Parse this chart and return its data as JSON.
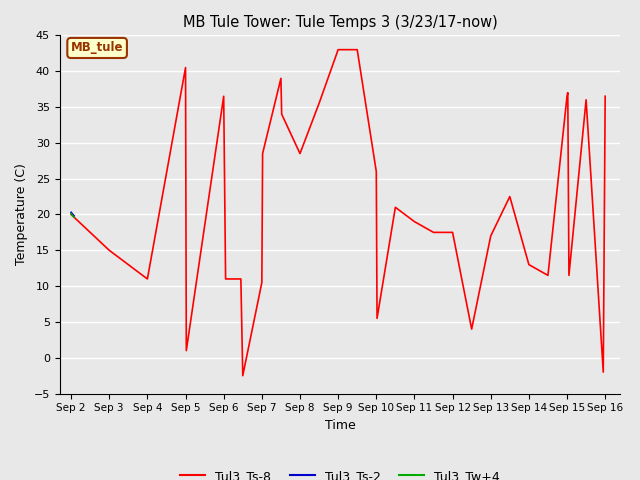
{
  "title": "MB Tule Tower: Tule Temps 3 (3/23/17-now)",
  "xlabel": "Time",
  "ylabel": "Temperature (C)",
  "ylim": [
    -5,
    45
  ],
  "fig_facecolor": "#e8e8e8",
  "plot_bg_color": "#e8e8e8",
  "grid_color": "white",
  "annotation_box_text": "MB_tule",
  "annotation_box_facecolor": "#ffffcc",
  "annotation_box_edgecolor": "#993300",
  "xtick_labels": [
    "Sep 2",
    "Sep 3",
    "Sep 4",
    "Sep 5",
    "Sep 6",
    "Sep 7",
    "Sep 8",
    "Sep 9",
    "Sep 10",
    "Sep 11",
    "Sep 12",
    "Sep 13",
    "Sep 14",
    "Sep 15",
    "Sep 16"
  ],
  "xtick_positions": [
    2,
    3,
    4,
    5,
    6,
    7,
    8,
    9,
    10,
    11,
    12,
    13,
    14,
    15,
    16
  ],
  "series": [
    {
      "name": "Tul3_Ts-8",
      "color": "#ff0000",
      "linewidth": 1.2,
      "x": [
        2.0,
        3.0,
        4.0,
        5.0,
        5.02,
        6.0,
        6.05,
        6.45,
        6.5,
        7.0,
        7.02,
        7.5,
        7.52,
        8.0,
        8.5,
        9.0,
        9.5,
        10.0,
        10.02,
        10.5,
        11.0,
        11.5,
        12.0,
        12.5,
        13.0,
        13.5,
        14.0,
        14.5,
        15.0,
        15.02,
        15.05,
        15.5,
        15.95,
        16.0
      ],
      "y": [
        20.0,
        15.0,
        11.0,
        40.5,
        1.0,
        36.5,
        11.0,
        11.0,
        -2.5,
        10.5,
        28.5,
        39.0,
        34.0,
        28.5,
        35.5,
        43.0,
        43.0,
        26.0,
        5.5,
        21.0,
        19.0,
        17.5,
        17.5,
        4.0,
        17.0,
        22.5,
        13.0,
        11.5,
        36.5,
        37.0,
        11.5,
        36.0,
        -2.0,
        36.5
      ]
    },
    {
      "name": "Tul3_Ts-2",
      "color": "#0000cc",
      "linewidth": 1.2,
      "x": [
        2.0,
        2.08
      ],
      "y": [
        20.3,
        19.8
      ]
    },
    {
      "name": "Tul3_Tw+4",
      "color": "#00aa00",
      "linewidth": 1.2,
      "x": [
        2.0,
        2.08
      ],
      "y": [
        20.1,
        19.6
      ]
    }
  ]
}
